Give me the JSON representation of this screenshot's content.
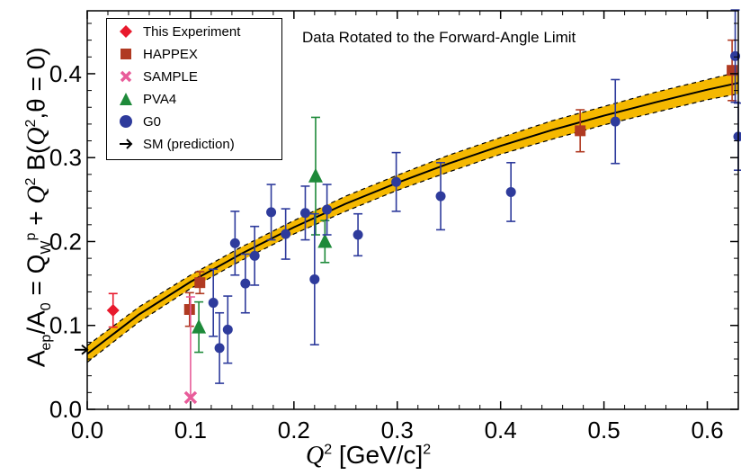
{
  "chart_data": {
    "type": "scatter",
    "annotation": "Data Rotated to the Forward-Angle Limit",
    "xlabel": "Q² [GeV/c]²",
    "ylabel": "A_ep/A_0 = Q_W^p + Q² B(Q², θ = 0)",
    "xlim": [
      0.0,
      0.63
    ],
    "ylim": [
      0.0,
      0.475
    ],
    "x_ticks": [
      "0.0",
      "0.1",
      "0.2",
      "0.3",
      "0.4",
      "0.5",
      "0.6"
    ],
    "y_ticks": [
      "0.0",
      "0.1",
      "0.2",
      "0.3",
      "0.4"
    ],
    "grid": false,
    "legend_position": "top-left",
    "sm_prediction": 0.071,
    "band": {
      "x": [
        0.0,
        0.05,
        0.1,
        0.15,
        0.2,
        0.25,
        0.3,
        0.35,
        0.4,
        0.45,
        0.5,
        0.55,
        0.6,
        0.63
      ],
      "center": [
        0.066,
        0.113,
        0.152,
        0.186,
        0.217,
        0.245,
        0.27,
        0.293,
        0.314,
        0.333,
        0.35,
        0.366,
        0.381,
        0.389
      ],
      "half_width": [
        0.01,
        0.009,
        0.008,
        0.008,
        0.008,
        0.009,
        0.009,
        0.01,
        0.01,
        0.011,
        0.011,
        0.012,
        0.012,
        0.013
      ],
      "fill_color": "#f5b800",
      "line_color": "#000000"
    },
    "series": [
      {
        "name": "This Experiment",
        "marker": "diamond",
        "color": "#e8192c",
        "points": [
          {
            "x": 0.025,
            "y": 0.118,
            "err": 0.02
          }
        ]
      },
      {
        "name": "HAPPEX",
        "marker": "square",
        "color": "#b03a22",
        "points": [
          {
            "x": 0.099,
            "y": 0.119,
            "err": 0.02
          },
          {
            "x": 0.109,
            "y": 0.151,
            "err": 0.013
          },
          {
            "x": 0.477,
            "y": 0.332,
            "err": 0.025
          },
          {
            "x": 0.624,
            "y": 0.404,
            "err": 0.036
          }
        ]
      },
      {
        "name": "SAMPLE",
        "marker": "x",
        "color": "#e85c9a",
        "points": [
          {
            "x": 0.1,
            "y": 0.014,
            "err": 0.12,
            "err_up_only": true
          }
        ]
      },
      {
        "name": "PVA4",
        "marker": "triangle",
        "color": "#1e8a3a",
        "points": [
          {
            "x": 0.108,
            "y": 0.098,
            "err": 0.03
          },
          {
            "x": 0.221,
            "y": 0.278,
            "err": 0.07
          },
          {
            "x": 0.23,
            "y": 0.2,
            "err": 0.025
          }
        ]
      },
      {
        "name": "G0",
        "marker": "circle",
        "color": "#2e3b9c",
        "points": [
          {
            "x": 0.122,
            "y": 0.127,
            "err": 0.04
          },
          {
            "x": 0.128,
            "y": 0.073,
            "err": 0.042
          },
          {
            "x": 0.136,
            "y": 0.095,
            "err": 0.04
          },
          {
            "x": 0.143,
            "y": 0.198,
            "err": 0.038
          },
          {
            "x": 0.153,
            "y": 0.15,
            "err": 0.035
          },
          {
            "x": 0.162,
            "y": 0.183,
            "err": 0.035
          },
          {
            "x": 0.178,
            "y": 0.235,
            "err": 0.033
          },
          {
            "x": 0.192,
            "y": 0.209,
            "err": 0.03
          },
          {
            "x": 0.211,
            "y": 0.234,
            "err": 0.032
          },
          {
            "x": 0.22,
            "y": 0.155,
            "err": 0.078
          },
          {
            "x": 0.232,
            "y": 0.238,
            "err": 0.03
          },
          {
            "x": 0.262,
            "y": 0.208,
            "err": 0.025
          },
          {
            "x": 0.299,
            "y": 0.271,
            "err": 0.035
          },
          {
            "x": 0.342,
            "y": 0.254,
            "err": 0.04
          },
          {
            "x": 0.41,
            "y": 0.259,
            "err": 0.035
          },
          {
            "x": 0.511,
            "y": 0.343,
            "err": 0.05
          },
          {
            "x": 0.627,
            "y": 0.421,
            "err": 0.055
          },
          {
            "x": 0.63,
            "y": 0.325,
            "err": 0.04
          }
        ]
      }
    ],
    "legend": [
      {
        "label": "This Experiment",
        "marker": "diamond",
        "color": "#e8192c"
      },
      {
        "label": "HAPPEX",
        "marker": "square",
        "color": "#b03a22"
      },
      {
        "label": "SAMPLE",
        "marker": "x",
        "color": "#e85c9a"
      },
      {
        "label": "PVA4",
        "marker": "triangle",
        "color": "#1e8a3a"
      },
      {
        "label": "G0",
        "marker": "circle",
        "color": "#2e3b9c"
      },
      {
        "label": "SM (prediction)",
        "marker": "arrow",
        "color": "#000000"
      }
    ]
  }
}
